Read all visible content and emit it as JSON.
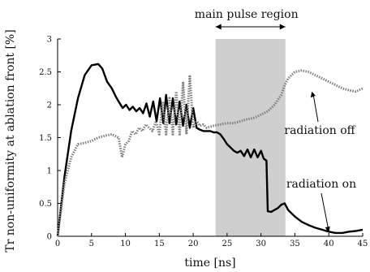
{
  "chart_data": {
    "type": "line",
    "title": "",
    "xlabel": "time [ns]",
    "ylabel": "Tr non-uniformity at ablation front [%]",
    "xlim": [
      0,
      45
    ],
    "ylim": [
      0,
      3
    ],
    "x_ticks": [
      "0",
      "5",
      "10",
      "15",
      "20",
      "25",
      "30",
      "35",
      "40",
      "45"
    ],
    "y_ticks": [
      "0",
      "0.5",
      "1",
      "1.5",
      "2",
      "2.5",
      "3"
    ],
    "grid": false,
    "shaded_region": {
      "label": "main pulse region",
      "x_start": 23.3,
      "x_end": 33.6
    },
    "annotations": [
      {
        "text": "radiation off",
        "points_to": [
          37.5,
          2.2
        ]
      },
      {
        "text": "radiation on",
        "points_to": [
          40.0,
          0.05
        ]
      }
    ],
    "series": [
      {
        "name": "radiation on",
        "color": "#000000",
        "style": "solid",
        "x": [
          0,
          1,
          2,
          3,
          4,
          5,
          6,
          6.6,
          7.3,
          8,
          8.6,
          9.0,
          9.6,
          10.1,
          10.6,
          11.1,
          11.6,
          12.1,
          12.6,
          13.1,
          13.6,
          14.1,
          14.6,
          15.1,
          15.6,
          16.0,
          16.5,
          17.0,
          17.5,
          18.0,
          18.5,
          19.0,
          19.5,
          20.0,
          20.5,
          21.0,
          21.5,
          22.0,
          22.5,
          23.0,
          23.5,
          24.0,
          24.5,
          25.0,
          25.5,
          26.0,
          26.5,
          27.0,
          27.5,
          28.0,
          28.5,
          29.0,
          29.5,
          30.0,
          30.4,
          30.8,
          31.0,
          31.5,
          32.0,
          32.5,
          33.0,
          33.5,
          34.0,
          35.0,
          36.0,
          37.0,
          38.0,
          39.0,
          40.0,
          41.0,
          42.0,
          43.0,
          44.0,
          45.0
        ],
        "y": [
          0,
          0.9,
          1.6,
          2.1,
          2.45,
          2.6,
          2.62,
          2.55,
          2.35,
          2.25,
          2.12,
          2.05,
          1.95,
          2.0,
          1.92,
          1.97,
          1.9,
          1.95,
          1.87,
          2.02,
          1.82,
          2.05,
          1.75,
          2.1,
          1.72,
          2.15,
          1.72,
          2.1,
          1.7,
          2.05,
          1.68,
          2.0,
          1.65,
          1.95,
          1.65,
          1.62,
          1.6,
          1.6,
          1.6,
          1.58,
          1.58,
          1.55,
          1.48,
          1.4,
          1.35,
          1.3,
          1.27,
          1.3,
          1.22,
          1.32,
          1.2,
          1.32,
          1.2,
          1.3,
          1.18,
          1.15,
          0.38,
          0.37,
          0.4,
          0.43,
          0.48,
          0.5,
          0.4,
          0.3,
          0.22,
          0.17,
          0.13,
          0.1,
          0.07,
          0.05,
          0.05,
          0.07,
          0.08,
          0.1
        ]
      },
      {
        "name": "radiation off",
        "color": "#808080",
        "style": "dotted",
        "x": [
          0,
          1,
          2,
          3,
          4,
          5,
          6,
          7,
          8,
          9,
          9.5,
          10,
          10.5,
          11,
          11.5,
          12,
          12.5,
          13,
          13.5,
          14,
          14.5,
          15,
          15.5,
          16,
          16.5,
          17,
          17.5,
          18,
          18.5,
          19,
          19.5,
          20,
          20.5,
          21,
          21.5,
          22,
          23,
          24,
          25,
          26,
          27,
          28,
          29,
          30,
          31,
          32,
          33,
          33.5,
          34,
          35,
          36,
          37,
          38,
          39,
          40,
          41,
          42,
          43,
          44,
          45
        ],
        "y": [
          0,
          0.8,
          1.2,
          1.4,
          1.42,
          1.45,
          1.5,
          1.53,
          1.55,
          1.5,
          1.2,
          1.4,
          1.45,
          1.6,
          1.55,
          1.65,
          1.6,
          1.7,
          1.65,
          1.6,
          1.75,
          1.55,
          2.05,
          1.55,
          2.1,
          1.55,
          2.2,
          1.55,
          2.35,
          1.55,
          2.45,
          1.65,
          1.75,
          1.68,
          1.7,
          1.65,
          1.68,
          1.7,
          1.72,
          1.72,
          1.75,
          1.78,
          1.8,
          1.85,
          1.9,
          2.0,
          2.15,
          2.3,
          2.4,
          2.5,
          2.52,
          2.5,
          2.45,
          2.4,
          2.35,
          2.3,
          2.25,
          2.22,
          2.2,
          2.25
        ]
      }
    ]
  }
}
